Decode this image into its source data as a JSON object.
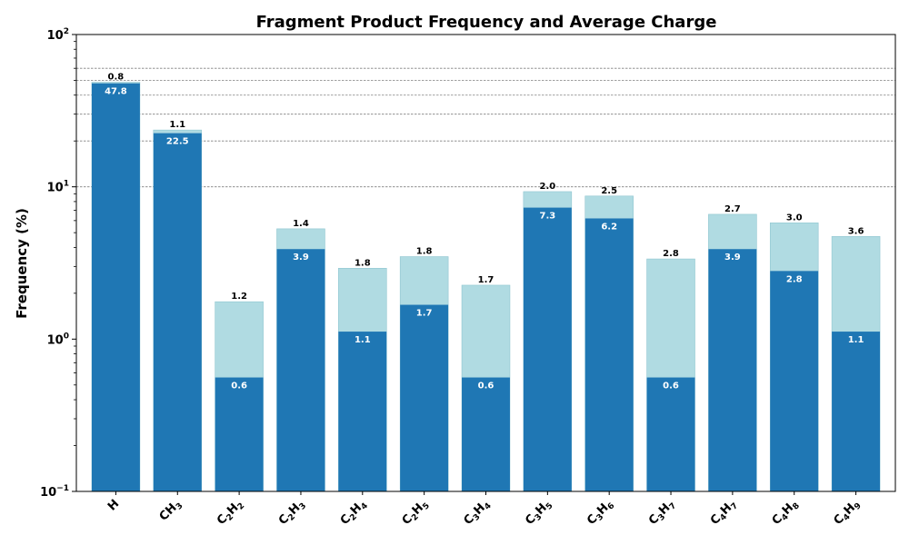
{
  "chart_data": {
    "type": "bar",
    "title": "Fragment Product Frequency and Average Charge",
    "ylabel": "Frequency (%)",
    "xlabel": "",
    "yscale": "log",
    "ylim": [
      0.1,
      100
    ],
    "y_ticks": [
      {
        "value": 0.1,
        "base": "10",
        "exp": "−1"
      },
      {
        "value": 1,
        "base": "10",
        "exp": "0"
      },
      {
        "value": 10,
        "base": "10",
        "exp": "1"
      },
      {
        "value": 100,
        "base": "10",
        "exp": "2"
      }
    ],
    "grid_lines": [
      10,
      20,
      30,
      40,
      50,
      60
    ],
    "categories": [
      {
        "parts": [
          [
            "H",
            ""
          ]
        ]
      },
      {
        "parts": [
          [
            "CH",
            "3"
          ]
        ]
      },
      {
        "parts": [
          [
            "C",
            "2"
          ],
          [
            "H",
            "2"
          ]
        ]
      },
      {
        "parts": [
          [
            "C",
            "2"
          ],
          [
            "H",
            "3"
          ]
        ]
      },
      {
        "parts": [
          [
            "C",
            "2"
          ],
          [
            "H",
            "4"
          ]
        ]
      },
      {
        "parts": [
          [
            "C",
            "2"
          ],
          [
            "H",
            "5"
          ]
        ]
      },
      {
        "parts": [
          [
            "C",
            "3"
          ],
          [
            "H",
            "4"
          ]
        ]
      },
      {
        "parts": [
          [
            "C",
            "3"
          ],
          [
            "H",
            "5"
          ]
        ]
      },
      {
        "parts": [
          [
            "C",
            "3"
          ],
          [
            "H",
            "6"
          ]
        ]
      },
      {
        "parts": [
          [
            "C",
            "3"
          ],
          [
            "H",
            "7"
          ]
        ]
      },
      {
        "parts": [
          [
            "C",
            "4"
          ],
          [
            "H",
            "7"
          ]
        ]
      },
      {
        "parts": [
          [
            "C",
            "4"
          ],
          [
            "H",
            "8"
          ]
        ]
      },
      {
        "parts": [
          [
            "C",
            "4"
          ],
          [
            "H",
            "9"
          ]
        ]
      }
    ],
    "series": [
      {
        "values": [
          47.8,
          22.5,
          0.56,
          3.9,
          1.12,
          1.68,
          0.56,
          7.3,
          6.2,
          0.56,
          3.9,
          2.8,
          1.12
        ],
        "labels": [
          "47.8",
          "22.5",
          "0.6",
          "3.9",
          "1.1",
          "1.7",
          "0.6",
          "7.3",
          "6.2",
          "0.6",
          "3.9",
          "2.8",
          "1.1"
        ],
        "color": "#1f77b4"
      },
      {
        "values": [
          48.6,
          23.6,
          1.76,
          5.3,
          2.92,
          3.48,
          2.26,
          9.3,
          8.7,
          3.36,
          6.6,
          5.8,
          4.72
        ],
        "labels": [
          "0.8",
          "1.1",
          "1.2",
          "1.4",
          "1.8",
          "1.8",
          "1.7",
          "2.0",
          "2.5",
          "2.8",
          "2.7",
          "3.0",
          "3.6"
        ],
        "color": "#b0dbe2"
      }
    ]
  }
}
